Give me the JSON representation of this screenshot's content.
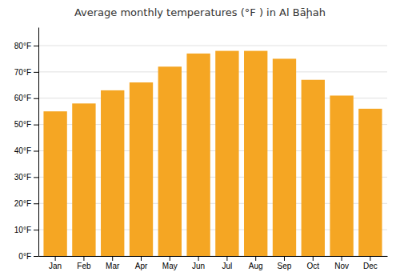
{
  "chart_data": {
    "type": "bar",
    "title": "Average monthly temperatures (°F ) in Al Bāḩah",
    "categories": [
      "Jan",
      "Feb",
      "Mar",
      "Apr",
      "May",
      "Jun",
      "Jul",
      "Aug",
      "Sep",
      "Oct",
      "Nov",
      "Dec"
    ],
    "values": [
      55,
      58,
      63,
      66,
      72,
      77,
      78,
      78,
      75,
      67,
      61,
      56
    ],
    "color": "#F5A623",
    "ylim": [
      0,
      87
    ],
    "yticks": [
      {
        "value": 0,
        "label": "0°F"
      },
      {
        "value": 10,
        "label": "10°F"
      },
      {
        "value": 20,
        "label": "20°F"
      },
      {
        "value": 30,
        "label": "30°F"
      },
      {
        "value": 40,
        "label": "40°F"
      },
      {
        "value": 50,
        "label": "50°F"
      },
      {
        "value": 60,
        "label": "60°F"
      },
      {
        "value": 70,
        "label": "70°F"
      },
      {
        "value": 80,
        "label": "80°F"
      }
    ],
    "grid": true
  }
}
